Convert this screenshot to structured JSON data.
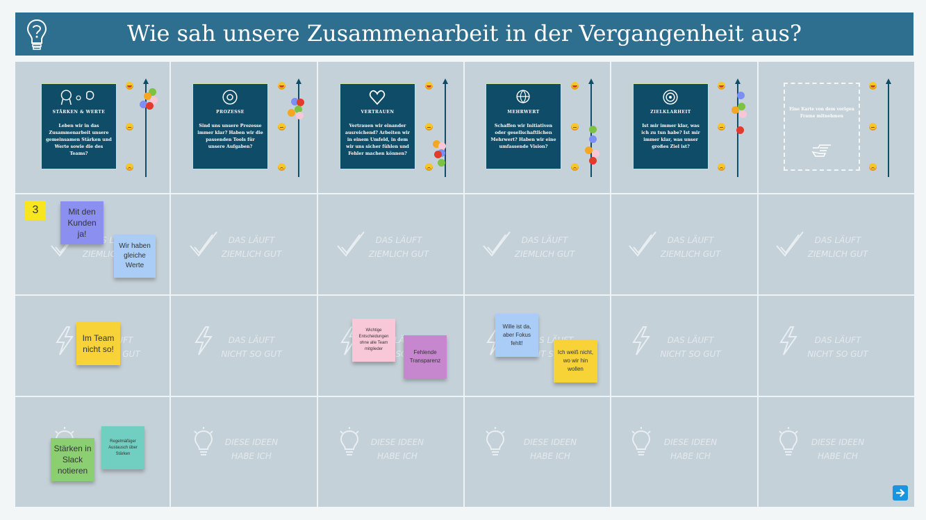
{
  "header": {
    "title": "Wie sah unsere Zusammenarbeit in der Vergangenheit aus?"
  },
  "columns": [
    {
      "label": "STÄRKEN & WERTE",
      "question": "Leben wir in das Zusammenarbeit unsere gemeinsamen Stärken und Werte sowie die des Teams?"
    },
    {
      "label": "PROZESSE",
      "question": "Sind uns unsere Prozesse immer klar? Haben wir die passenden Tools für unsere Aufgaben?"
    },
    {
      "label": "VERTRAUEN",
      "question": "Vertrauen wir einander ausreichend? Arbeiten wir in einem Umfeld, in dem wir uns sicher fühlen und Fehler machen können?"
    },
    {
      "label": "MEHRWERT",
      "question": "Schaffen wir Initiativen oder gesellschaftlichen Mehrwert? Haben wir eine umfassende Vision?"
    },
    {
      "label": "ZIELKLARHEIT",
      "question": "Ist mir immer klar, was ich zu tun habe? Ist mir immer klar, was unser großes Ziel ist?"
    },
    {
      "label": "",
      "question": "Eine Karte von dem vorigen Frame mitnehmen"
    }
  ],
  "row_watermarks": {
    "good": "DAS LÄUFT ZIEMLICH GUT",
    "bad": "DAS LÄUFT NICHT SO GUT",
    "ideas": "DIESE IDEEN HABE ICH"
  },
  "badge": {
    "value": "3"
  },
  "stickies": {
    "s1": "Mit den Kunden ja!",
    "s2": "Wir haben gleiche Werte",
    "s3": "Im Team nicht so!",
    "s4": "Wichtige Entscheidungen ohne alle Team mitglieder",
    "s5": "Fehlende Transparenz",
    "s6": "Wille ist da, aber Fokus fehlt!",
    "s7": "Ich weiß nicht, wo wir hin wollen",
    "s8": "Stärken in Slack notieren",
    "s9": "Regelmäßiger Austausch über Stärken"
  },
  "icons": {
    "header": "question-bulb-icon",
    "nav": "arrow-right-icon",
    "good": "checkmark-icon",
    "bad": "lightning-icon",
    "ideas": "lightbulb-icon"
  },
  "colors": {
    "header": "#2e6f8f",
    "card": "#0f4c68",
    "board": "#c5d1d8",
    "nav": "#1994e0"
  }
}
